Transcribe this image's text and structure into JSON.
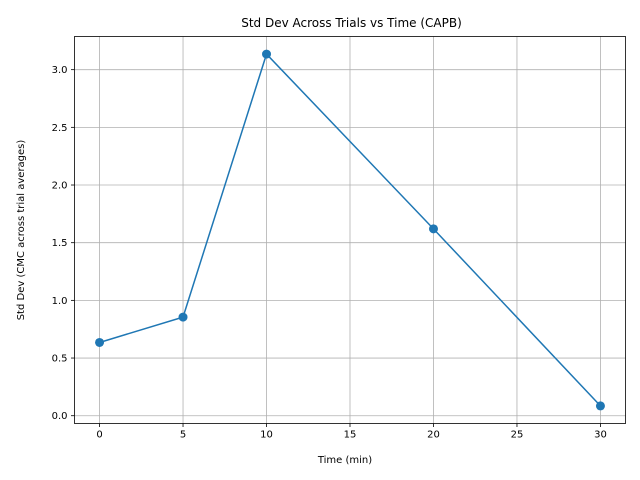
{
  "chart_data": {
    "type": "line",
    "title": "Std Dev Across Trials vs Time (CAPB)",
    "xlabel": "Time (min)",
    "ylabel": "Std Dev (CMC across trial averages)",
    "x": [
      0,
      5,
      10,
      20,
      30
    ],
    "series": [
      {
        "values": [
          0.635,
          0.855,
          3.135,
          1.62,
          0.085
        ],
        "color": "#1f77b4",
        "marker": "circle"
      }
    ],
    "xlim": [
      -1.5,
      31.5
    ],
    "ylim": [
      -0.0675,
      3.2875
    ],
    "xticks": [
      0,
      5,
      10,
      15,
      20,
      25,
      30
    ],
    "xtick_labels": [
      "0",
      "5",
      "10",
      "15",
      "20",
      "25",
      "30"
    ],
    "yticks": [
      0.0,
      0.5,
      1.0,
      1.5,
      2.0,
      2.5,
      3.0
    ],
    "ytick_labels": [
      "0.0",
      "0.5",
      "1.0",
      "1.5",
      "2.0",
      "2.5",
      "3.0"
    ],
    "grid": true,
    "grid_color": "#b0b0b0",
    "axis_color": "#000000"
  }
}
